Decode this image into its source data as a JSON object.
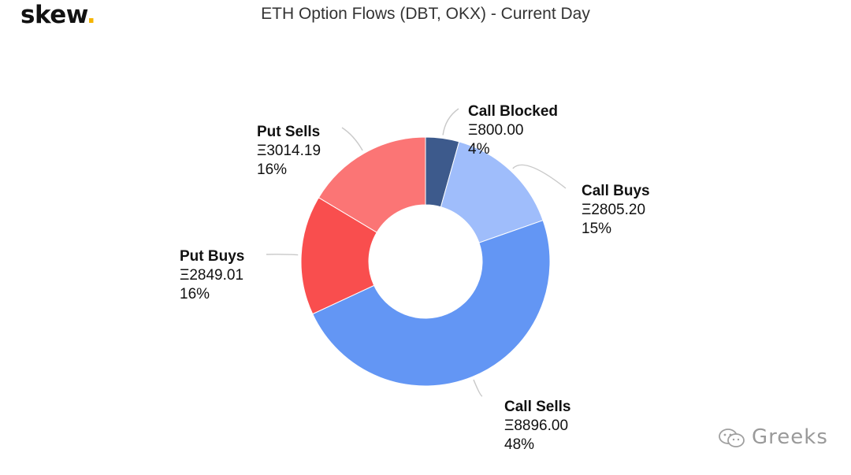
{
  "brand": {
    "logo_text": "skew",
    "logo_dot": ".",
    "accent_color": "#f5b400"
  },
  "watermark": {
    "text": "Greeks",
    "icon": "wechat-icon"
  },
  "chart_data": {
    "type": "pie",
    "variant": "donut",
    "title": "ETH Option Flows (DBT, OKX) - Current Day",
    "currency_symbol": "Ξ",
    "slices": [
      {
        "name": "Call Blocked",
        "value": 800.0,
        "value_label": "Ξ800.00",
        "pct_label": "4%",
        "color": "#3d5a8c"
      },
      {
        "name": "Call Buys",
        "value": 2805.2,
        "value_label": "Ξ2805.20",
        "pct_label": "15%",
        "color": "#9fbdfb"
      },
      {
        "name": "Call Sells",
        "value": 8896.0,
        "value_label": "Ξ8896.00",
        "pct_label": "48%",
        "color": "#6396f4"
      },
      {
        "name": "Put Buys",
        "value": 2849.01,
        "value_label": "Ξ2849.01",
        "pct_label": "16%",
        "color": "#f94e4e"
      },
      {
        "name": "Put Sells",
        "value": 3014.19,
        "value_label": "Ξ3014.19",
        "pct_label": "16%",
        "color": "#fb7575"
      }
    ]
  }
}
